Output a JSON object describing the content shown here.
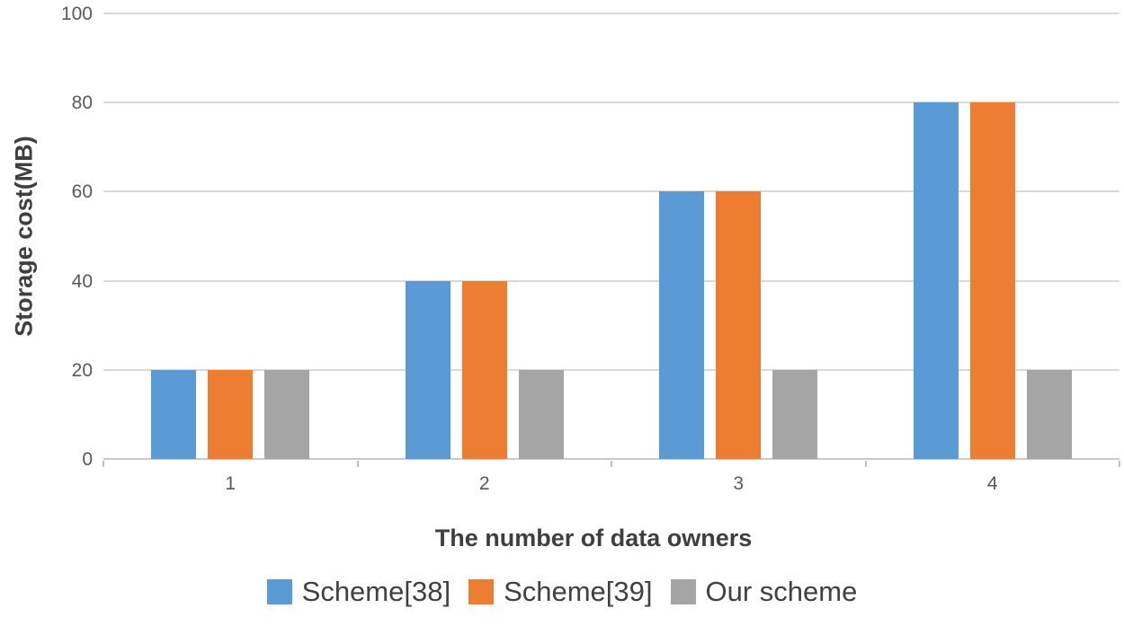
{
  "chart_data": {
    "type": "bar",
    "title": "",
    "xlabel": "The number of data owners",
    "ylabel": "Storage cost(MB)",
    "categories": [
      "1",
      "2",
      "3",
      "4"
    ],
    "series": [
      {
        "name": "Scheme[38]",
        "color": "#5B9BD5",
        "values": [
          20,
          40,
          60,
          80
        ]
      },
      {
        "name": "Scheme[39]",
        "color": "#ED7D31",
        "values": [
          20,
          40,
          60,
          80
        ]
      },
      {
        "name": "Our scheme",
        "color": "#A5A5A5",
        "values": [
          20,
          20,
          20,
          20
        ]
      }
    ],
    "ylim": [
      0,
      100
    ],
    "yticks": [
      0,
      20,
      40,
      60,
      80,
      100
    ],
    "grid": true,
    "legend_position": "bottom"
  },
  "colors": {
    "gridline": "#D9D9D9",
    "axis_baseline": "#C9C9C9",
    "tick_mark": "#BFBFBF",
    "tick_label_text": "#595959",
    "axis_title_text": "#3F3F3F",
    "legend_text": "#404040",
    "background": "#FFFFFF"
  }
}
